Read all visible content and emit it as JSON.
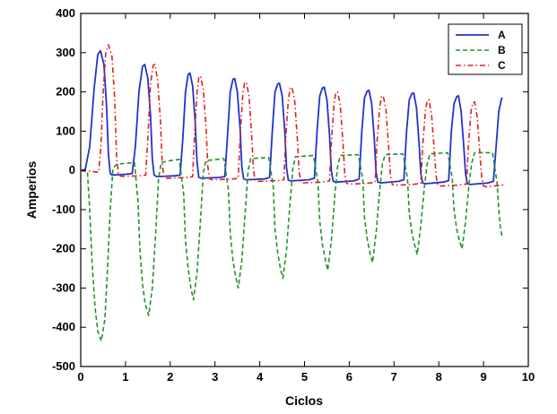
{
  "chart_data": {
    "type": "line",
    "title": "",
    "xlabel": "Ciclos",
    "ylabel": "Amperios",
    "xlim": [
      0,
      10
    ],
    "ylim": [
      -500,
      400
    ],
    "xticks": [
      0,
      1,
      2,
      3,
      4,
      5,
      6,
      7,
      8,
      9,
      10
    ],
    "yticks": [
      -500,
      -400,
      -300,
      -200,
      -100,
      0,
      100,
      200,
      300,
      400
    ],
    "grid": false,
    "legend_position": "top-right",
    "series": [
      {
        "name": "A",
        "color": "#2233cc",
        "dash": "solid",
        "points": [
          [
            0,
            0
          ],
          [
            0.1,
            2
          ],
          [
            0.2,
            60
          ],
          [
            0.3,
            210
          ],
          [
            0.38,
            295
          ],
          [
            0.44,
            305
          ],
          [
            0.52,
            270
          ],
          [
            0.58,
            160
          ],
          [
            0.62,
            40
          ],
          [
            0.66,
            -8
          ],
          [
            0.7,
            -12
          ],
          [
            1.0,
            -10
          ],
          [
            1.15,
            -8
          ],
          [
            1.22,
            60
          ],
          [
            1.3,
            200
          ],
          [
            1.38,
            265
          ],
          [
            1.43,
            270
          ],
          [
            1.5,
            235
          ],
          [
            1.56,
            140
          ],
          [
            1.6,
            30
          ],
          [
            1.64,
            -12
          ],
          [
            1.7,
            -16
          ],
          [
            2.1,
            -14
          ],
          [
            2.22,
            -12
          ],
          [
            2.28,
            80
          ],
          [
            2.34,
            200
          ],
          [
            2.4,
            245
          ],
          [
            2.44,
            248
          ],
          [
            2.5,
            215
          ],
          [
            2.56,
            120
          ],
          [
            2.6,
            20
          ],
          [
            2.64,
            -18
          ],
          [
            2.7,
            -20
          ],
          [
            3.1,
            -18
          ],
          [
            3.22,
            -16
          ],
          [
            3.28,
            90
          ],
          [
            3.34,
            200
          ],
          [
            3.4,
            232
          ],
          [
            3.44,
            234
          ],
          [
            3.5,
            200
          ],
          [
            3.56,
            110
          ],
          [
            3.6,
            10
          ],
          [
            3.64,
            -22
          ],
          [
            3.7,
            -24
          ],
          [
            4.1,
            -22
          ],
          [
            4.22,
            -18
          ],
          [
            4.28,
            100
          ],
          [
            4.34,
            200
          ],
          [
            4.4,
            220
          ],
          [
            4.44,
            222
          ],
          [
            4.5,
            190
          ],
          [
            4.56,
            100
          ],
          [
            4.6,
            5
          ],
          [
            4.64,
            -25
          ],
          [
            4.7,
            -27
          ],
          [
            5.1,
            -24
          ],
          [
            5.22,
            -20
          ],
          [
            5.28,
            100
          ],
          [
            5.34,
            190
          ],
          [
            5.4,
            210
          ],
          [
            5.44,
            212
          ],
          [
            5.5,
            180
          ],
          [
            5.56,
            90
          ],
          [
            5.6,
            0
          ],
          [
            5.64,
            -28
          ],
          [
            5.7,
            -30
          ],
          [
            6.1,
            -27
          ],
          [
            6.22,
            -22
          ],
          [
            6.28,
            100
          ],
          [
            6.34,
            185
          ],
          [
            6.4,
            202
          ],
          [
            6.44,
            204
          ],
          [
            6.5,
            170
          ],
          [
            6.56,
            80
          ],
          [
            6.6,
            -5
          ],
          [
            6.64,
            -30
          ],
          [
            6.7,
            -32
          ],
          [
            7.1,
            -28
          ],
          [
            7.22,
            -24
          ],
          [
            7.28,
            100
          ],
          [
            7.34,
            180
          ],
          [
            7.4,
            196
          ],
          [
            7.44,
            197
          ],
          [
            7.5,
            160
          ],
          [
            7.56,
            70
          ],
          [
            7.6,
            -8
          ],
          [
            7.64,
            -32
          ],
          [
            7.7,
            -34
          ],
          [
            8.1,
            -30
          ],
          [
            8.22,
            -26
          ],
          [
            8.28,
            100
          ],
          [
            8.34,
            170
          ],
          [
            8.4,
            188
          ],
          [
            8.44,
            190
          ],
          [
            8.5,
            150
          ],
          [
            8.56,
            60
          ],
          [
            8.6,
            -10
          ],
          [
            8.64,
            -34
          ],
          [
            8.7,
            -36
          ],
          [
            9.1,
            -32
          ],
          [
            9.22,
            -28
          ],
          [
            9.28,
            60
          ],
          [
            9.34,
            150
          ],
          [
            9.4,
            182
          ],
          [
            9.42,
            185
          ]
        ]
      },
      {
        "name": "B",
        "color": "#22922e",
        "dash": "dashed",
        "points": [
          [
            0,
            0
          ],
          [
            0.15,
            -5
          ],
          [
            0.2,
            -100
          ],
          [
            0.25,
            -230
          ],
          [
            0.32,
            -350
          ],
          [
            0.38,
            -410
          ],
          [
            0.46,
            -435
          ],
          [
            0.54,
            -380
          ],
          [
            0.6,
            -250
          ],
          [
            0.66,
            -100
          ],
          [
            0.72,
            5
          ],
          [
            0.8,
            15
          ],
          [
            1.0,
            18
          ],
          [
            1.2,
            20
          ],
          [
            1.28,
            -80
          ],
          [
            1.32,
            -200
          ],
          [
            1.38,
            -290
          ],
          [
            1.44,
            -340
          ],
          [
            1.52,
            -370
          ],
          [
            1.6,
            -300
          ],
          [
            1.68,
            -150
          ],
          [
            1.74,
            -20
          ],
          [
            1.8,
            20
          ],
          [
            2.0,
            25
          ],
          [
            2.2,
            28
          ],
          [
            2.3,
            -60
          ],
          [
            2.34,
            -180
          ],
          [
            2.4,
            -250
          ],
          [
            2.46,
            -300
          ],
          [
            2.52,
            -330
          ],
          [
            2.6,
            -260
          ],
          [
            2.68,
            -120
          ],
          [
            2.74,
            -5
          ],
          [
            2.8,
            25
          ],
          [
            3.2,
            30
          ],
          [
            3.3,
            -50
          ],
          [
            3.34,
            -160
          ],
          [
            3.4,
            -230
          ],
          [
            3.46,
            -270
          ],
          [
            3.52,
            -300
          ],
          [
            3.6,
            -230
          ],
          [
            3.68,
            -100
          ],
          [
            3.74,
            0
          ],
          [
            3.8,
            30
          ],
          [
            4.2,
            33
          ],
          [
            4.3,
            -40
          ],
          [
            4.34,
            -150
          ],
          [
            4.4,
            -210
          ],
          [
            4.46,
            -250
          ],
          [
            4.52,
            -275
          ],
          [
            4.6,
            -200
          ],
          [
            4.68,
            -80
          ],
          [
            4.74,
            5
          ],
          [
            4.8,
            35
          ],
          [
            5.2,
            38
          ],
          [
            5.3,
            -30
          ],
          [
            5.34,
            -130
          ],
          [
            5.4,
            -190
          ],
          [
            5.46,
            -225
          ],
          [
            5.52,
            -255
          ],
          [
            5.6,
            -180
          ],
          [
            5.68,
            -60
          ],
          [
            5.74,
            10
          ],
          [
            5.8,
            38
          ],
          [
            6.2,
            40
          ],
          [
            6.3,
            -20
          ],
          [
            6.34,
            -120
          ],
          [
            6.4,
            -175
          ],
          [
            6.46,
            -210
          ],
          [
            6.52,
            -235
          ],
          [
            6.6,
            -160
          ],
          [
            6.68,
            -50
          ],
          [
            6.74,
            15
          ],
          [
            6.8,
            40
          ],
          [
            7.2,
            42
          ],
          [
            7.3,
            -20
          ],
          [
            7.34,
            -110
          ],
          [
            7.4,
            -160
          ],
          [
            7.46,
            -190
          ],
          [
            7.52,
            -215
          ],
          [
            7.6,
            -140
          ],
          [
            7.68,
            -40
          ],
          [
            7.74,
            15
          ],
          [
            7.8,
            42
          ],
          [
            8.2,
            45
          ],
          [
            8.3,
            -20
          ],
          [
            8.34,
            -100
          ],
          [
            8.4,
            -150
          ],
          [
            8.46,
            -180
          ],
          [
            8.52,
            -200
          ],
          [
            8.6,
            -130
          ],
          [
            8.68,
            -30
          ],
          [
            8.74,
            20
          ],
          [
            8.8,
            45
          ],
          [
            9.2,
            45
          ],
          [
            9.3,
            -30
          ],
          [
            9.34,
            -100
          ],
          [
            9.38,
            -150
          ],
          [
            9.42,
            -170
          ]
        ]
      },
      {
        "name": "C",
        "color": "#dd2222",
        "dash": "dashdot",
        "points": [
          [
            0,
            0
          ],
          [
            0.2,
            -2
          ],
          [
            0.4,
            -5
          ],
          [
            0.45,
            60
          ],
          [
            0.5,
            200
          ],
          [
            0.56,
            300
          ],
          [
            0.62,
            320
          ],
          [
            0.7,
            290
          ],
          [
            0.76,
            180
          ],
          [
            0.8,
            40
          ],
          [
            0.84,
            -10
          ],
          [
            0.9,
            -15
          ],
          [
            1.3,
            -14
          ],
          [
            1.45,
            -12
          ],
          [
            1.5,
            80
          ],
          [
            1.56,
            220
          ],
          [
            1.62,
            268
          ],
          [
            1.66,
            270
          ],
          [
            1.72,
            230
          ],
          [
            1.78,
            130
          ],
          [
            1.82,
            20
          ],
          [
            1.86,
            -18
          ],
          [
            1.9,
            -20
          ],
          [
            2.4,
            -18
          ],
          [
            2.5,
            -16
          ],
          [
            2.54,
            80
          ],
          [
            2.6,
            200
          ],
          [
            2.64,
            238
          ],
          [
            2.68,
            240
          ],
          [
            2.74,
            205
          ],
          [
            2.8,
            110
          ],
          [
            2.84,
            10
          ],
          [
            2.88,
            -22
          ],
          [
            2.94,
            -24
          ],
          [
            3.4,
            -22
          ],
          [
            3.52,
            -20
          ],
          [
            3.56,
            80
          ],
          [
            3.62,
            190
          ],
          [
            3.66,
            222
          ],
          [
            3.7,
            225
          ],
          [
            3.76,
            190
          ],
          [
            3.82,
            90
          ],
          [
            3.86,
            0
          ],
          [
            3.9,
            -26
          ],
          [
            3.96,
            -28
          ],
          [
            4.4,
            -26
          ],
          [
            4.54,
            -24
          ],
          [
            4.58,
            80
          ],
          [
            4.64,
            180
          ],
          [
            4.68,
            210
          ],
          [
            4.72,
            212
          ],
          [
            4.78,
            180
          ],
          [
            4.84,
            80
          ],
          [
            4.88,
            -5
          ],
          [
            4.92,
            -30
          ],
          [
            4.98,
            -32
          ],
          [
            5.4,
            -30
          ],
          [
            5.56,
            -27
          ],
          [
            5.6,
            70
          ],
          [
            5.66,
            170
          ],
          [
            5.7,
            198
          ],
          [
            5.74,
            200
          ],
          [
            5.8,
            165
          ],
          [
            5.86,
            70
          ],
          [
            5.9,
            -10
          ],
          [
            5.94,
            -33
          ],
          [
            6.0,
            -35
          ],
          [
            6.4,
            -33
          ],
          [
            6.58,
            -30
          ],
          [
            6.62,
            70
          ],
          [
            6.68,
            160
          ],
          [
            6.72,
            188
          ],
          [
            6.76,
            190
          ],
          [
            6.82,
            155
          ],
          [
            6.88,
            60
          ],
          [
            6.92,
            -12
          ],
          [
            6.96,
            -36
          ],
          [
            7.02,
            -38
          ],
          [
            7.4,
            -36
          ],
          [
            7.6,
            -33
          ],
          [
            7.64,
            60
          ],
          [
            7.7,
            150
          ],
          [
            7.74,
            178
          ],
          [
            7.78,
            180
          ],
          [
            7.84,
            140
          ],
          [
            7.9,
            50
          ],
          [
            7.94,
            -15
          ],
          [
            7.98,
            -38
          ],
          [
            8.04,
            -40
          ],
          [
            8.4,
            -38
          ],
          [
            8.62,
            -35
          ],
          [
            8.66,
            60
          ],
          [
            8.72,
            150
          ],
          [
            8.76,
            172
          ],
          [
            8.8,
            175
          ],
          [
            8.86,
            135
          ],
          [
            8.92,
            40
          ],
          [
            8.96,
            -18
          ],
          [
            9.0,
            -40
          ],
          [
            9.06,
            -42
          ],
          [
            9.4,
            -38
          ],
          [
            9.45,
            -36
          ]
        ]
      }
    ]
  }
}
